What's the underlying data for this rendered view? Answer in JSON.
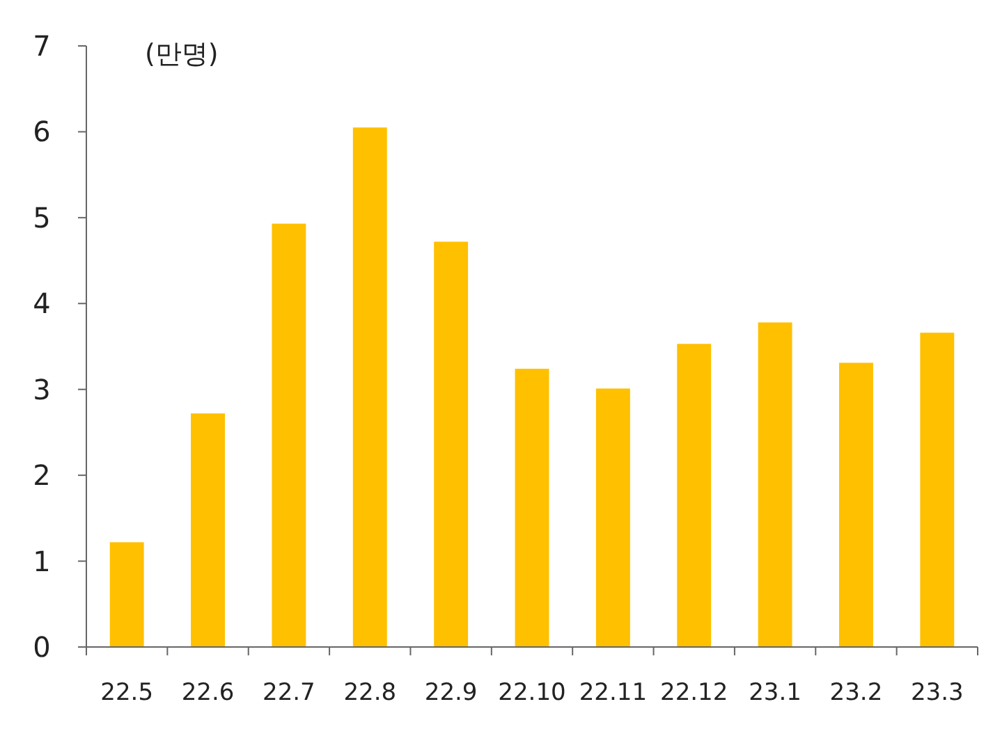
{
  "chart_data": {
    "type": "bar",
    "ylabel": "(만명)",
    "categories": [
      "22.5",
      "22.6",
      "22.7",
      "22.8",
      "22.9",
      "22.10",
      "22.11",
      "22.12",
      "23.1",
      "23.2",
      "23.3"
    ],
    "values": [
      1.22,
      2.72,
      4.93,
      6.05,
      4.72,
      3.24,
      3.01,
      3.53,
      3.78,
      3.31,
      3.66
    ],
    "color": "#ffc000",
    "ylim": [
      0,
      7
    ],
    "yticks": [
      0,
      1,
      2,
      3,
      4,
      5,
      6,
      7
    ]
  }
}
